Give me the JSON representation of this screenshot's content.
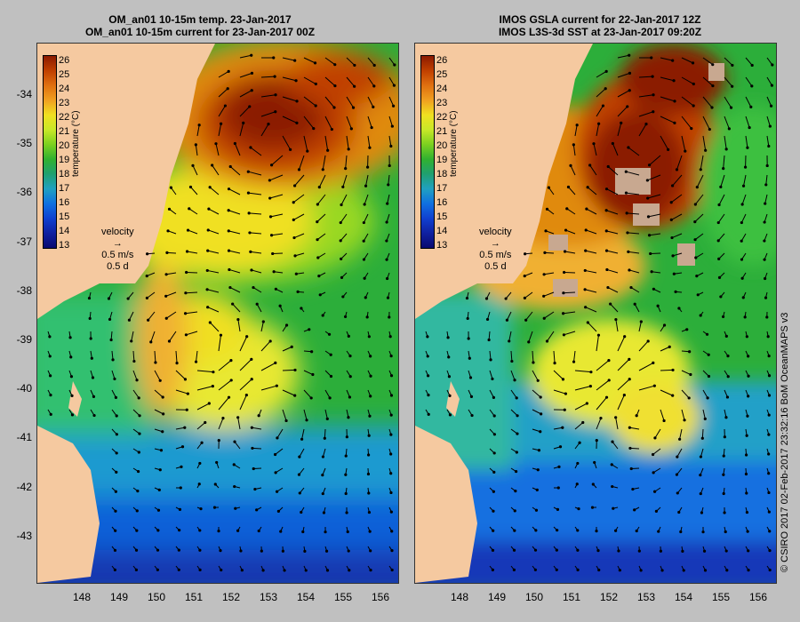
{
  "left_panel": {
    "title_line1": "OM_an01 10-15m temp. 23-Jan-2017",
    "title_line2": "OM_an01 10-15m current for 23-Jan-2017 00Z"
  },
  "right_panel": {
    "title_line1": "IMOS GSLA current for 22-Jan-2017 12Z",
    "title_line2": "IMOS L3S-3d SST at 23-Jan-2017 09:20Z"
  },
  "colorbar": {
    "title": "temperature (°C)",
    "ticks": [
      "26",
      "25",
      "24",
      "23",
      "22",
      "21",
      "20",
      "19",
      "18",
      "17",
      "16",
      "15",
      "14",
      "13"
    ],
    "colors": [
      "#8b1a00",
      "#c04000",
      "#e07010",
      "#f0a020",
      "#f0e020",
      "#c8e828",
      "#7cd020",
      "#30b030",
      "#20a070",
      "#20a0c0",
      "#1070e0",
      "#1040d0",
      "#1020a0",
      "#0a0a70"
    ]
  },
  "velocity_key": {
    "label": "velocity",
    "speed": "0.5 m/s",
    "duration": "0.5 d"
  },
  "y_axis": {
    "ticks": [
      "-34",
      "-35",
      "-36",
      "-37",
      "-38",
      "-39",
      "-40",
      "-41",
      "-42",
      "-43"
    ]
  },
  "x_axis": {
    "ticks": [
      "148",
      "149",
      "150",
      "151",
      "152",
      "153",
      "154",
      "155",
      "156"
    ]
  },
  "credit": "© CSIRO 2017   02-Feb-2017 23:32:16 BoM OceanMAPS v3",
  "colors": {
    "land": "#f5c9a0",
    "background": "#c0c0c0"
  }
}
